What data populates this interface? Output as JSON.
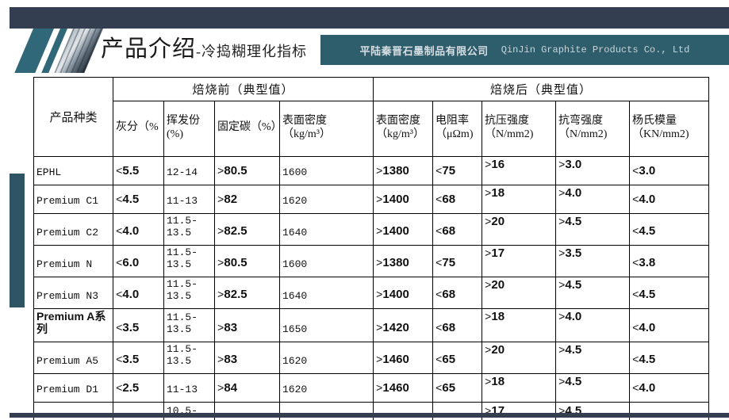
{
  "slide": {
    "title": "产品介绍",
    "subtitle": "-冷捣糊理化指标",
    "company_cn": "平陆秦晋石墨制品有限公司",
    "company_en": "QinJin Graphite Products Co., Ltd"
  },
  "colors": {
    "navy": "#333F50",
    "teal": "#2E5D6C",
    "teal_logo": "#316879",
    "teal_side": "#2F5565"
  },
  "table": {
    "col_product": "产品种类",
    "group_before": "焙烧前（典型值）",
    "group_after": "焙烧后（典型值）",
    "headers_before": [
      "灰分（%",
      "挥发份(%)",
      "固定碳（%）",
      "表面密度\n（kg/m³）"
    ],
    "headers_after": [
      "表面密度\n（kg/m³）",
      "电阻率\n（μΩm)",
      "抗压强度\n（N/mm2)",
      "抗弯强度\n（N/mm2)",
      "杨氏模量\n（KN/mm2)"
    ],
    "rows": [
      {
        "name": "EPHL",
        "ash": "<5.5",
        "volatile": "12-14",
        "carbon": ">80.5",
        "density_before": "1600",
        "density_after": ">1380",
        "resistivity": "<75",
        "compressive": ">16",
        "flexural": ">3.0",
        "youngs": "<3.0"
      },
      {
        "name": "Premium C1",
        "ash": "<4.5",
        "volatile": "11-13",
        "carbon": ">82",
        "density_before": "1620",
        "density_after": ">1400",
        "resistivity": "<68",
        "compressive": ">18",
        "flexural": ">4.0",
        "youngs": "<4.0"
      },
      {
        "name": "Premium C2",
        "ash": "<4.0",
        "volatile": "11.5-13.5",
        "carbon": ">82.5",
        "density_before": "1640",
        "density_after": ">1400",
        "resistivity": "<68",
        "compressive": ">20",
        "flexural": ">4.5",
        "youngs": "<4.5"
      },
      {
        "name": "Premium N",
        "ash": "<6.0",
        "volatile": "11.5-13.5",
        "carbon": ">80.5",
        "density_before": "1600",
        "density_after": ">1380",
        "resistivity": "<75",
        "compressive": ">17",
        "flexural": ">3.5",
        "youngs": "<3.8"
      },
      {
        "name": "Premium N3",
        "ash": "<4.0",
        "volatile": "11.5-13.5",
        "carbon": ">82.5",
        "density_before": "1640",
        "density_after": ">1400",
        "resistivity": "<68",
        "compressive": ">20",
        "flexural": ">4.5",
        "youngs": "<4.5"
      },
      {
        "name": "Premium A系列",
        "name_sans": true,
        "ash": "<3.5",
        "volatile": "11.5-13.5",
        "carbon": ">83",
        "density_before": "1650",
        "density_after": ">1420",
        "resistivity": "<68",
        "compressive": ">18",
        "flexural": ">4.0",
        "youngs": "<4.0"
      },
      {
        "name": "Premium A5",
        "ash": "<3.5",
        "volatile": "11.5-13.5",
        "carbon": ">83",
        "density_before": "1620",
        "density_after": ">1460",
        "resistivity": "<65",
        "compressive": ">20",
        "flexural": ">4.5",
        "youngs": "<4.5"
      },
      {
        "name": "Premium D1",
        "ash": "<2.5",
        "volatile": "11-13",
        "carbon": ">84",
        "density_before": "1620",
        "density_after": ">1460",
        "resistivity": "<65",
        "compressive": ">18",
        "flexural": ">4.5",
        "youngs": "<4.0"
      },
      {
        "name": "",
        "partial": true,
        "ash": "",
        "volatile": "10.5-",
        "carbon": "",
        "density_before": "",
        "density_after": "",
        "resistivity": "",
        "compressive": ">17",
        "flexural": ">4.5",
        "youngs": ""
      }
    ]
  }
}
